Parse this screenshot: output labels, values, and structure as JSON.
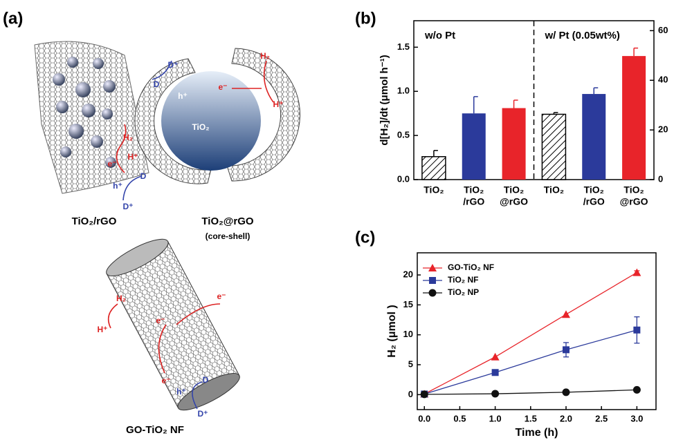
{
  "schematic": {
    "panel_label": "(a)",
    "labels": [
      "H₂",
      "H⁺",
      "e⁻",
      "h⁺",
      "D",
      "D⁺",
      "D⁺",
      "D",
      "h⁺",
      "e⁻",
      "H₂",
      "H⁺",
      "TiO₂",
      "H₂",
      "H⁺",
      "e⁻",
      "e⁻",
      "e⁻",
      "h⁺",
      "D",
      "D⁺"
    ],
    "captions": [
      "TiO₂/rGO",
      "TiO₂@rGO",
      "(core-shell)",
      "GO-TiO₂ NF"
    ]
  },
  "chart_data": [
    {
      "type": "bar",
      "panel_label": "(b)",
      "ylabel": "d[H₂]/dt (μmol h⁻¹)",
      "groups": [
        "w/o Pt",
        "w/ Pt (0.05wt%)"
      ],
      "categories": [
        [
          "TiO₂"
        ],
        [
          "TiO₂",
          "/rGO"
        ],
        [
          "TiO₂",
          "@rGO"
        ],
        [
          "TiO₂"
        ],
        [
          "TiO₂",
          "/rGO"
        ],
        [
          "TiO₂",
          "@rGO"
        ]
      ],
      "values": [
        0.26,
        0.75,
        0.81,
        0.74,
        0.97,
        1.4
      ],
      "errors": [
        0.07,
        0.19,
        0.09,
        0.02,
        0.07,
        0.09
      ],
      "colors": [
        "#ffffff",
        "#2b3a9b",
        "#e8242a",
        "#ffffff",
        "#2b3a9b",
        "#e8242a"
      ],
      "hatch": [
        true,
        false,
        false,
        true,
        false,
        false
      ],
      "ylim": [
        0,
        1.8
      ],
      "yticks": [
        {
          "value": 0,
          "label": "0.0"
        },
        0.5,
        {
          "value": 1,
          "label": "1.0"
        },
        1.5
      ],
      "y2lim": [
        0,
        64
      ],
      "y2ticks": [
        0,
        20,
        40,
        60
      ]
    },
    {
      "type": "line",
      "panel_label": "(c)",
      "xlabel": "Time (h)",
      "ylabel": "H₂ (μmol )",
      "x": [
        0,
        1,
        2,
        3
      ],
      "series": [
        {
          "name": "GO-TiO₂ NF",
          "color": "#e8242a",
          "marker": "triangle",
          "values": [
            0.1,
            6.3,
            13.4,
            20.4
          ],
          "errors": [
            0,
            0,
            0,
            0.3
          ]
        },
        {
          "name": "TiO₂ NF",
          "color": "#2b3a9b",
          "marker": "square",
          "values": [
            0.1,
            3.7,
            7.5,
            10.8
          ],
          "errors": [
            0,
            0.3,
            1.2,
            2.2
          ]
        },
        {
          "name": "TiO₂ NP",
          "color": "#111111",
          "marker": "circle",
          "values": [
            0.05,
            0.15,
            0.4,
            0.8
          ],
          "errors": [
            0,
            0,
            0,
            0
          ]
        }
      ],
      "xlim": [
        -0.1,
        3.27
      ],
      "ylim": [
        -2.5,
        23.7
      ],
      "xticks": [
        {
          "value": 0,
          "label": "0.0"
        },
        0.5,
        {
          "value": 1,
          "label": "1.0"
        },
        1.5,
        {
          "value": 2,
          "label": "2.0"
        },
        2.5,
        {
          "value": 3,
          "label": "3.0"
        }
      ],
      "yticks": [
        0,
        5,
        10,
        15,
        20
      ],
      "legend": "upper left"
    }
  ]
}
